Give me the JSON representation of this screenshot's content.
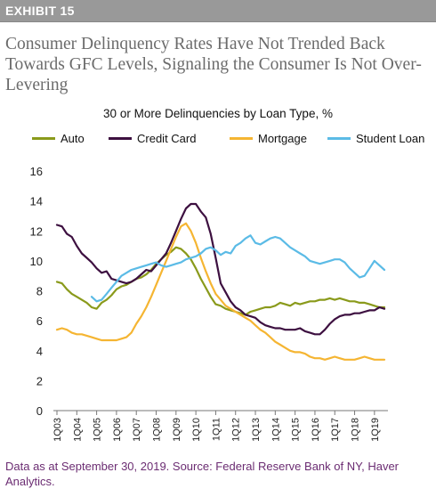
{
  "header": {
    "exhibit_label": "EXHIBIT 15"
  },
  "title": "Consumer Delinquency Rates Have Not Trended Back Towards GFC Levels, Signaling the Consumer Is Not Over-Levering",
  "footnote": "Data as at September 30, 2019. Source: Federal Reserve Bank of NY, Haver Analytics.",
  "chart_data": {
    "type": "line",
    "title": "30 or More Delinquencies by Loan Type, %",
    "xlabel": "",
    "ylabel": "",
    "ylim": [
      0,
      16
    ],
    "yticks": [
      0,
      2,
      4,
      6,
      8,
      10,
      12,
      14,
      16
    ],
    "xticks": [
      "1Q03",
      "1Q04",
      "1Q05",
      "1Q06",
      "1Q07",
      "1Q08",
      "1Q09",
      "1Q10",
      "1Q11",
      "1Q12",
      "1Q13",
      "1Q14",
      "1Q15",
      "1Q16",
      "1Q17",
      "1Q18",
      "1Q19"
    ],
    "x_start": "1Q03",
    "grid": false,
    "legend_position": "top",
    "series": [
      {
        "name": "Auto",
        "color": "#8a9a1b",
        "values": [
          8.6,
          8.5,
          8.1,
          7.8,
          7.6,
          7.4,
          7.2,
          6.9,
          6.8,
          7.2,
          7.4,
          7.7,
          8.1,
          8.3,
          8.4,
          8.6,
          8.8,
          8.9,
          9.1,
          9.4,
          9.8,
          10.1,
          10.4,
          10.6,
          10.9,
          10.8,
          10.5,
          10.1,
          9.5,
          8.8,
          8.2,
          7.6,
          7.1,
          7.0,
          6.8,
          6.7,
          6.6,
          6.5,
          6.4,
          6.6,
          6.7,
          6.8,
          6.9,
          6.9,
          7.0,
          7.2,
          7.1,
          7.0,
          7.2,
          7.1,
          7.2,
          7.3,
          7.3,
          7.4,
          7.4,
          7.5,
          7.4,
          7.5,
          7.4,
          7.3,
          7.3,
          7.2,
          7.2,
          7.1,
          7.0,
          6.9,
          6.9
        ]
      },
      {
        "name": "Credit Card",
        "color": "#3d1040",
        "values": [
          12.4,
          12.3,
          11.8,
          11.6,
          11.0,
          10.5,
          10.2,
          9.9,
          9.5,
          9.2,
          9.3,
          8.8,
          8.7,
          8.6,
          8.5,
          8.6,
          8.8,
          9.1,
          9.4,
          9.3,
          9.7,
          10.1,
          10.5,
          11.2,
          12.0,
          12.8,
          13.5,
          13.8,
          13.8,
          13.3,
          12.9,
          11.8,
          10.2,
          8.5,
          7.9,
          7.3,
          6.9,
          6.7,
          6.4,
          6.3,
          6.2,
          5.9,
          5.7,
          5.6,
          5.5,
          5.5,
          5.4,
          5.4,
          5.4,
          5.5,
          5.3,
          5.2,
          5.1,
          5.1,
          5.4,
          5.8,
          6.1,
          6.3,
          6.4,
          6.4,
          6.5,
          6.5,
          6.6,
          6.7,
          6.7,
          6.9,
          6.8
        ]
      },
      {
        "name": "Mortgage",
        "color": "#f5b532",
        "values": [
          5.4,
          5.5,
          5.4,
          5.2,
          5.1,
          5.1,
          5.0,
          4.9,
          4.8,
          4.7,
          4.7,
          4.7,
          4.7,
          4.8,
          4.9,
          5.2,
          5.8,
          6.3,
          6.9,
          7.6,
          8.4,
          9.2,
          10.0,
          10.8,
          11.6,
          12.3,
          12.5,
          12.0,
          11.2,
          10.2,
          9.3,
          8.5,
          7.8,
          7.4,
          7.0,
          6.8,
          6.6,
          6.4,
          6.2,
          6.0,
          5.7,
          5.4,
          5.2,
          4.9,
          4.6,
          4.4,
          4.2,
          4.0,
          3.9,
          3.9,
          3.8,
          3.6,
          3.5,
          3.5,
          3.4,
          3.5,
          3.6,
          3.5,
          3.4,
          3.4,
          3.4,
          3.5,
          3.6,
          3.5,
          3.4,
          3.4,
          3.4
        ]
      },
      {
        "name": "Student Loan",
        "color": "#5bbbe6",
        "values": [
          null,
          null,
          null,
          null,
          null,
          null,
          null,
          7.6,
          7.3,
          7.4,
          7.8,
          8.2,
          8.6,
          9.0,
          9.2,
          9.4,
          9.5,
          9.6,
          9.7,
          9.8,
          9.9,
          9.7,
          9.6,
          9.7,
          9.8,
          9.9,
          10.1,
          10.2,
          10.3,
          10.5,
          10.8,
          10.9,
          10.7,
          10.4,
          10.6,
          10.5,
          11.0,
          11.2,
          11.5,
          11.7,
          11.2,
          11.1,
          11.3,
          11.5,
          11.6,
          11.5,
          11.2,
          10.9,
          10.7,
          10.5,
          10.3,
          10.0,
          9.9,
          9.8,
          9.9,
          10.0,
          10.1,
          10.1,
          9.9,
          9.5,
          9.2,
          8.9,
          9.0,
          9.5,
          10.0,
          9.7,
          9.4
        ]
      }
    ]
  }
}
